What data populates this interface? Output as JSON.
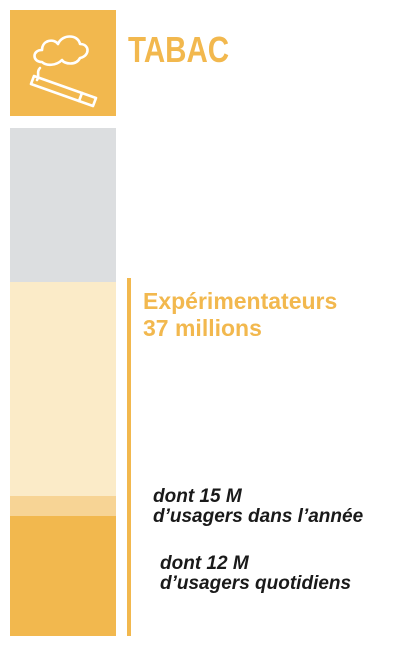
{
  "title": "TABAC",
  "icon": {
    "name": "cigarette-smoke-icon",
    "bg_color": "#f2b84e"
  },
  "colors": {
    "accent": "#f2b84e",
    "gray_segment": "#dcdee0",
    "light_segment": "#fbebc8",
    "mid_segment": "#f7d495",
    "dark_segment": "#f2b84e",
    "note_text": "#1a1a1a"
  },
  "experimenters": {
    "label": "Expérimentateurs",
    "value": "37 millions"
  },
  "annual_users": {
    "line1": "dont 15 M",
    "line2": "d’usagers dans l’année"
  },
  "daily_users": {
    "line1": "dont 12 M",
    "line2": "d’usagers quotidiens"
  }
}
